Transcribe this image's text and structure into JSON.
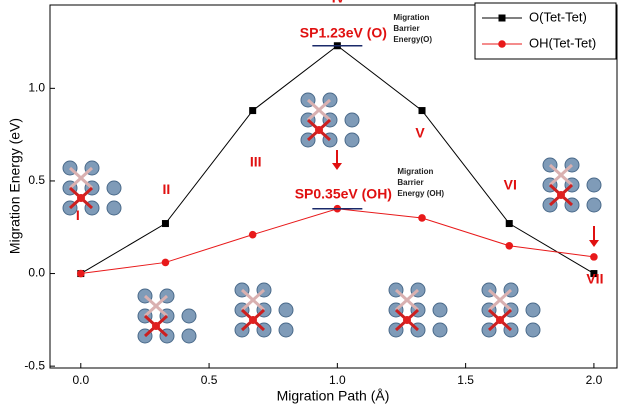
{
  "chart_data": {
    "type": "line",
    "xlabel": "Migration Path (Å)",
    "ylabel": "Migration Energy  (eV)",
    "x": [
      0,
      0.33,
      0.67,
      1.0,
      1.33,
      1.67,
      2.0
    ],
    "series": [
      {
        "name": "O(Tet-Tet)",
        "color": "#000000",
        "marker": "square",
        "values": [
          0,
          0.27,
          0.88,
          1.23,
          0.88,
          0.27,
          0
        ]
      },
      {
        "name": "OH(Tet-Tet)",
        "color": "#e8191a",
        "marker": "circle",
        "values": [
          0,
          0.06,
          0.21,
          0.35,
          0.3,
          0.15,
          0.09
        ]
      }
    ],
    "point_labels": [
      "I",
      "II",
      "III",
      "IV",
      "V",
      "VI",
      "VII"
    ],
    "annotations": [
      {
        "text": "SP1.23eV (O)",
        "note": [
          "Migration",
          "Barrier",
          "Energy(O)"
        ]
      },
      {
        "text": "SP0.35eV (OH)",
        "note": [
          "Migration",
          "Barrier",
          "Energy (OH)"
        ]
      }
    ],
    "xlim": [
      -0.12,
      2.09
    ],
    "ylim": [
      -0.51,
      1.45
    ],
    "xticks": [
      {
        "value": 0,
        "label": "0.0"
      },
      0.5,
      {
        "value": 1,
        "label": "1.0"
      },
      1.5,
      {
        "value": 2,
        "label": "2.0"
      }
    ],
    "yticks": [
      -0.5,
      {
        "value": 0,
        "label": "0.0"
      },
      0.5,
      {
        "value": 1,
        "label": "1.0"
      }
    ],
    "legend": "upper right"
  }
}
